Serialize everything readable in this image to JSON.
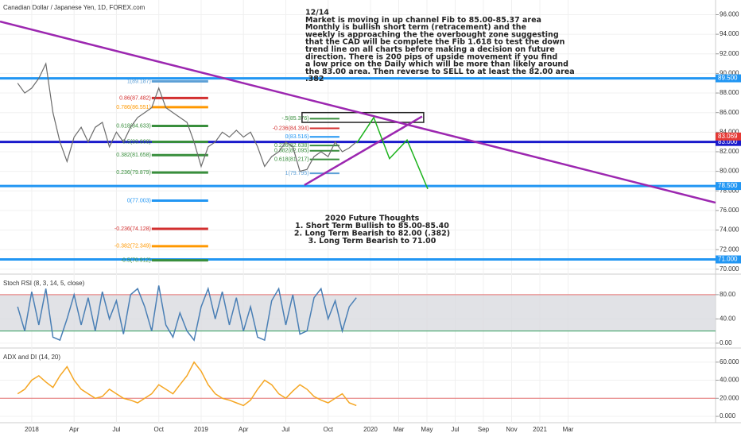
{
  "chart_data": [
    {
      "type": "line",
      "title": "Canadian Dollar / Japanese Yen, 1D, FOREX.com",
      "x": [
        -1,
        -0.5,
        0,
        0.5,
        1,
        1.5,
        2,
        2.5,
        3,
        3.5,
        4,
        4.5,
        5,
        5.5,
        6,
        6.5,
        7,
        7.5,
        8,
        8.5,
        9,
        9.5,
        10,
        10.5,
        11,
        11.5,
        12,
        12.5,
        13,
        13.5,
        14,
        14.5,
        15,
        15.5,
        16,
        16.5,
        17,
        17.5,
        18,
        18.5,
        19,
        19.5,
        20,
        20.5,
        21,
        21.5,
        22,
        22.5,
        23
      ],
      "series": [
        {
          "color": "#6b6b6b",
          "values": [
            89,
            88,
            88.5,
            89.5,
            91,
            86,
            83,
            81,
            83.5,
            84.5,
            83,
            84.5,
            85,
            82.5,
            84,
            83,
            84.5,
            85.5,
            86,
            86.5,
            88.5,
            86.5,
            86,
            85.5,
            85,
            83,
            80.5,
            82.5,
            83,
            84,
            83.5,
            84.2,
            83.5,
            84,
            82.5,
            80.5,
            81.5,
            82,
            83,
            82.5,
            80,
            80.2,
            81.5,
            82,
            81.5,
            83,
            82,
            82.4,
            83
          ]
        }
      ],
      "xlim": [
        -2.25,
        48.45
      ],
      "xticks": [
        {
          "value": 0,
          "label": "2018"
        },
        {
          "value": 3,
          "label": "Apr"
        },
        {
          "value": 6,
          "label": "Jul"
        },
        {
          "value": 9,
          "label": "Oct"
        },
        {
          "value": 12,
          "label": "2019"
        },
        {
          "value": 15,
          "label": "Apr"
        },
        {
          "value": 18,
          "label": "Jul"
        },
        {
          "value": 21,
          "label": "Oct"
        },
        {
          "value": 24,
          "label": "2020"
        },
        {
          "value": 26,
          "label": "Mar"
        },
        {
          "value": 28,
          "label": "May"
        },
        {
          "value": 30,
          "label": "Jul"
        },
        {
          "value": 32,
          "label": "Sep"
        },
        {
          "value": 34,
          "label": "Nov"
        },
        {
          "value": 36,
          "label": "2021"
        },
        {
          "value": 38,
          "label": "Mar"
        }
      ],
      "ylim": [
        69.5,
        97.5
      ],
      "yticks": [
        {
          "value": 70,
          "label": "70.000"
        },
        {
          "value": 72,
          "label": "72.000"
        },
        {
          "value": 74,
          "label": "74.000"
        },
        {
          "value": 76,
          "label": "76.000"
        },
        {
          "value": 78,
          "label": "78.000"
        },
        {
          "value": 80,
          "label": "80.000"
        },
        {
          "value": 82,
          "label": "82.000"
        },
        {
          "value": 84,
          "label": "84.000"
        },
        {
          "value": 86,
          "label": "86.000"
        },
        {
          "value": 88,
          "label": "88.000"
        },
        {
          "value": 90,
          "label": "90.000"
        },
        {
          "value": 92,
          "label": "92.000"
        },
        {
          "value": 94,
          "label": "94.000"
        },
        {
          "value": 96,
          "label": "96.000"
        }
      ],
      "levels": [
        {
          "value": 89.5,
          "label": "89.500",
          "color": "#2196f3"
        },
        {
          "value": 83.0,
          "label": "83.000",
          "color": "#1a1acc"
        },
        {
          "value": 78.5,
          "label": "78.500",
          "color": "#2196f3"
        },
        {
          "value": 71,
          "label": "71.000",
          "color": "#2196f3"
        }
      ],
      "last_price": {
        "value": 83.069,
        "label": "83.069",
        "color": "#e53935"
      },
      "trendlines": [
        {
          "x": [
            -2.25,
            48.45
          ],
          "y": [
            95.3,
            76.8
          ],
          "color": "#9c27b0"
        },
        {
          "x": [
            19.32,
            27.66
          ],
          "y": [
            78.6,
            85.6
          ],
          "color": "#9c27b0"
        }
      ],
      "projection": {
        "x": [
          23.04,
          24.23,
          25.35,
          26.59,
          28.06
        ],
        "y": [
          82.9,
          85.5,
          81.3,
          83.2,
          78.2
        ],
        "color": "#1db31d"
      },
      "box": {
        "x": [
          19.15,
          27.77
        ],
        "y": [
          86.0,
          85.0
        ]
      },
      "fib_sets": [
        {
          "x": [
            8.5,
            12.5
          ],
          "levels": [
            {
              "value": 89.187,
              "label": "1(89.187)",
              "color": "#5c9fd6"
            },
            {
              "value": 87.482,
              "label": "0.86(87.482)",
              "color": "#d32f2f"
            },
            {
              "value": 86.551,
              "label": "0.786(86.551)",
              "color": "#ff9800"
            },
            {
              "value": 84.633,
              "label": "0.618(84.633)",
              "color": "#388e3c"
            },
            {
              "value": 83.008,
              "label": "0.5(83.008)",
              "color": "#388e3c"
            },
            {
              "value": 81.658,
              "label": "0.382(81.658)",
              "color": "#388e3c"
            },
            {
              "value": 79.879,
              "label": "0.236(79.879)",
              "color": "#388e3c"
            },
            {
              "value": 77.003,
              "label": "0(77.003)",
              "color": "#2196f3"
            },
            {
              "value": 74.128,
              "label": "-0.236(74.128)",
              "color": "#d32f2f"
            },
            {
              "value": 72.349,
              "label": "-0.382(72.349)",
              "color": "#ff9800"
            },
            {
              "value": 70.912,
              "label": "-0.5(70.912)",
              "color": "#388e3c"
            }
          ]
        },
        {
          "x": [
            19.7,
            21.8
          ],
          "levels": [
            {
              "value": 85.376,
              "label": "-.5(85.376)",
              "color": "#388e3c"
            },
            {
              "value": 84.394,
              "label": "-0.236(84.394)",
              "color": "#d32f2f"
            },
            {
              "value": 83.516,
              "label": "0(83.516)",
              "color": "#2196f3"
            },
            {
              "value": 82.638,
              "label": "0.236(82.638)",
              "color": "#388e3c"
            },
            {
              "value": 82.095,
              "label": "0.382(82.095)",
              "color": "#388e3c"
            },
            {
              "value": 81.217,
              "label": "0.618(81.217)",
              "color": "#388e3c"
            },
            {
              "value": 79.795,
              "label": "1(79.795)",
              "color": "#5c9fd6"
            }
          ]
        }
      ],
      "note": [
        "12/14",
        "Market is moving in up channel Fib to 85.00-85.37 area",
        "Monthly is bullish short term (retracement) and the",
        "weekly is approaching the the overbought zone suggesting",
        "that the CAD will be complete the Fib 1.618 to test the down",
        "trend line on all charts before making a decision on future",
        "direction. There is 200 pips of upside movement if you find",
        "a low price on the Daily which will be more than likely around",
        "the 83.00 area.  Then reverse to SELL to at least the 82.00 area",
        ".382"
      ],
      "future": [
        "2020 Future Thoughts",
        "1. Short Term Bullish to 85.00-85.40",
        "2. Long Term Bearish to 82.00 (.382)",
        "3. Long Term Bearish to 71.00"
      ]
    },
    {
      "type": "oscillator",
      "title": "Stoch RSI (8, 3, 14, 5, close)",
      "x": [
        -1,
        -0.5,
        0,
        0.5,
        1,
        1.5,
        2,
        2.5,
        3,
        3.5,
        4,
        4.5,
        5,
        5.5,
        6,
        6.5,
        7,
        7.5,
        8,
        8.5,
        9,
        9.5,
        10,
        10.5,
        11,
        11.5,
        12,
        12.5,
        13,
        13.5,
        14,
        14.5,
        15,
        15.5,
        16,
        16.5,
        17,
        17.5,
        18,
        18.5,
        19,
        19.5,
        20,
        20.5,
        21,
        21.5,
        22,
        22.5,
        23
      ],
      "series": [
        {
          "color": "#4a7fb5",
          "values": [
            60,
            20,
            85,
            30,
            90,
            10,
            5,
            40,
            80,
            30,
            75,
            20,
            85,
            40,
            70,
            15,
            80,
            90,
            60,
            20,
            95,
            30,
            10,
            50,
            20,
            5,
            60,
            90,
            40,
            85,
            30,
            75,
            20,
            60,
            10,
            5,
            70,
            90,
            30,
            80,
            15,
            20,
            75,
            90,
            40,
            70,
            20,
            60,
            75
          ]
        }
      ],
      "ylim": [
        -8,
        110
      ],
      "yticks": [
        {
          "value": 0,
          "label": "0.00"
        },
        {
          "value": 40,
          "label": "40.00"
        },
        {
          "value": 80,
          "label": "80.00"
        }
      ],
      "bands": [
        {
          "value": 80,
          "color": "#e57373"
        },
        {
          "value": 20,
          "color": "#2e9e5a"
        }
      ]
    },
    {
      "type": "oscillator",
      "title": "ADX and DI (14, 20)",
      "x": [
        -1,
        -0.5,
        0,
        0.5,
        1,
        1.5,
        2,
        2.5,
        3,
        3.5,
        4,
        4.5,
        5,
        5.5,
        6,
        6.5,
        7,
        7.5,
        8,
        8.5,
        9,
        9.5,
        10,
        10.5,
        11,
        11.5,
        12,
        12.5,
        13,
        13.5,
        14,
        14.5,
        15,
        15.5,
        16,
        16.5,
        17,
        17.5,
        18,
        18.5,
        19,
        19.5,
        20,
        20.5,
        21,
        21.5,
        22,
        22.5,
        23
      ],
      "series": [
        {
          "color": "#f5a623",
          "values": [
            25,
            30,
            40,
            45,
            38,
            32,
            45,
            55,
            40,
            30,
            25,
            20,
            22,
            30,
            25,
            20,
            18,
            15,
            20,
            25,
            35,
            30,
            25,
            35,
            45,
            60,
            50,
            35,
            25,
            20,
            18,
            15,
            12,
            18,
            30,
            40,
            35,
            25,
            20,
            28,
            35,
            30,
            22,
            18,
            15,
            20,
            25,
            15,
            12
          ]
        }
      ],
      "ylim": [
        -7,
        73
      ],
      "yticks": [
        {
          "value": 0,
          "label": "0.000"
        },
        {
          "value": 20,
          "label": "20.000"
        },
        {
          "value": 40,
          "label": "40.000"
        },
        {
          "value": 60,
          "label": "60.000"
        }
      ],
      "bands": [
        {
          "value": 20,
          "color": "#e57373"
        }
      ]
    }
  ]
}
